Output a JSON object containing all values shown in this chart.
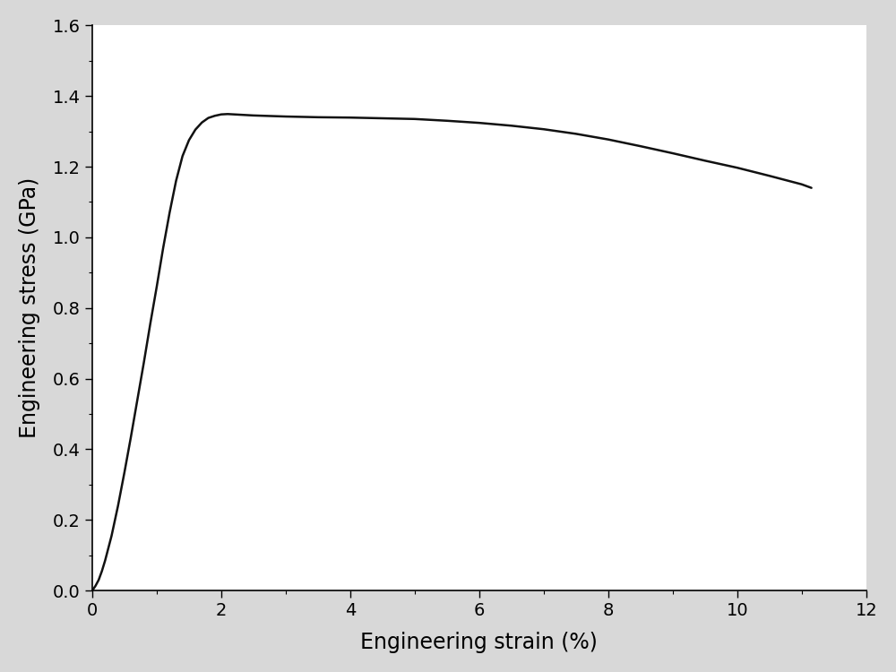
{
  "xlabel": "Engineering strain (%)",
  "ylabel": "Engineering stress (GPa)",
  "xlim": [
    0,
    12
  ],
  "ylim": [
    0,
    1.6
  ],
  "xticks": [
    0,
    2,
    4,
    6,
    8,
    10,
    12
  ],
  "yticks": [
    0.0,
    0.2,
    0.4,
    0.6,
    0.8,
    1.0,
    1.2,
    1.4,
    1.6
  ],
  "line_color": "#111111",
  "line_width": 1.8,
  "background_color": "#d8d8d8",
  "axes_background": "#ffffff",
  "xlabel_fontsize": 17,
  "ylabel_fontsize": 17,
  "tick_fontsize": 14,
  "curve": {
    "strain": [
      0.0,
      0.02,
      0.05,
      0.1,
      0.15,
      0.2,
      0.3,
      0.4,
      0.5,
      0.6,
      0.7,
      0.8,
      0.9,
      1.0,
      1.1,
      1.2,
      1.3,
      1.4,
      1.5,
      1.6,
      1.7,
      1.8,
      1.9,
      2.0,
      2.1,
      2.2,
      2.5,
      3.0,
      3.5,
      4.0,
      4.5,
      5.0,
      5.5,
      6.0,
      6.5,
      7.0,
      7.5,
      8.0,
      8.5,
      9.0,
      9.5,
      10.0,
      10.5,
      11.0,
      11.15
    ],
    "stress": [
      0.0,
      0.005,
      0.013,
      0.03,
      0.055,
      0.085,
      0.155,
      0.24,
      0.335,
      0.435,
      0.54,
      0.645,
      0.755,
      0.86,
      0.97,
      1.07,
      1.16,
      1.23,
      1.275,
      1.305,
      1.325,
      1.338,
      1.344,
      1.348,
      1.349,
      1.348,
      1.345,
      1.342,
      1.34,
      1.339,
      1.337,
      1.335,
      1.33,
      1.324,
      1.316,
      1.306,
      1.293,
      1.277,
      1.258,
      1.238,
      1.217,
      1.197,
      1.174,
      1.15,
      1.14
    ]
  }
}
